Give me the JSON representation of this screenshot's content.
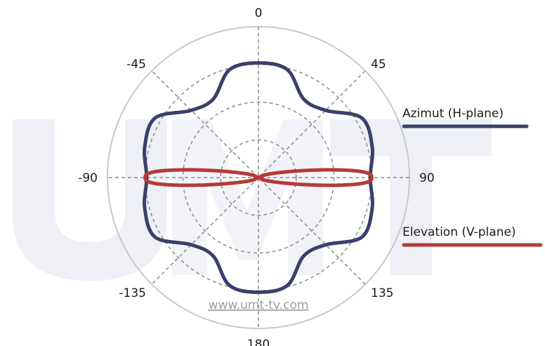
{
  "chart_data": {
    "type": "polar-line",
    "title": "",
    "angle_ticks": [
      {
        "angle": 0,
        "label": "0"
      },
      {
        "angle": 45,
        "label": "45"
      },
      {
        "angle": 90,
        "label": "90"
      },
      {
        "angle": 135,
        "label": "135"
      },
      {
        "angle": 180,
        "label": "180"
      },
      {
        "angle": -135,
        "label": "-135"
      },
      {
        "angle": -90,
        "label": "-90"
      },
      {
        "angle": -45,
        "label": "-45"
      }
    ],
    "radial_grid": [
      0.25,
      0.5,
      0.75
    ],
    "outer_circle": 1.0,
    "grid": true,
    "legend_position": "right",
    "series": [
      {
        "name": "Azimut (H-plane)",
        "color": "#3a3f6b",
        "points": [
          {
            "angle": 0,
            "r": 0.76
          },
          {
            "angle": 15,
            "r": 0.74
          },
          {
            "angle": 30,
            "r": 0.6
          },
          {
            "angle": 45,
            "r": 0.63
          },
          {
            "angle": 60,
            "r": 0.79
          },
          {
            "angle": 75,
            "r": 0.78
          },
          {
            "angle": 90,
            "r": 0.74
          },
          {
            "angle": 105,
            "r": 0.78
          },
          {
            "angle": 120,
            "r": 0.79
          },
          {
            "angle": 135,
            "r": 0.63
          },
          {
            "angle": 150,
            "r": 0.6
          },
          {
            "angle": 165,
            "r": 0.74
          },
          {
            "angle": 180,
            "r": 0.76
          },
          {
            "angle": -165,
            "r": 0.74
          },
          {
            "angle": -150,
            "r": 0.6
          },
          {
            "angle": -135,
            "r": 0.63
          },
          {
            "angle": -120,
            "r": 0.79
          },
          {
            "angle": -105,
            "r": 0.78
          },
          {
            "angle": -90,
            "r": 0.74
          },
          {
            "angle": -75,
            "r": 0.78
          },
          {
            "angle": -60,
            "r": 0.79
          },
          {
            "angle": -45,
            "r": 0.63
          },
          {
            "angle": -30,
            "r": 0.6
          },
          {
            "angle": -15,
            "r": 0.74
          }
        ]
      },
      {
        "name": "Elevation (V-plane)",
        "color": "#b53a35",
        "lobe": {
          "shape": "figure-eight",
          "max_r": 0.75,
          "axis_angle": 90,
          "half_width_deg": 11
        }
      }
    ]
  },
  "legend": {
    "items": [
      {
        "label": "Azimut (H-plane)",
        "color": "#3a3f6b"
      },
      {
        "label": "Elevation (V-plane)",
        "color": "#b53a35"
      }
    ]
  },
  "watermark": {
    "url": "www.umt-tv.com",
    "letters": "UMT"
  },
  "colors": {
    "grid": "#8c8c8c",
    "outer_circle": "#c8c8c8",
    "watermark": "#eef0f6"
  }
}
